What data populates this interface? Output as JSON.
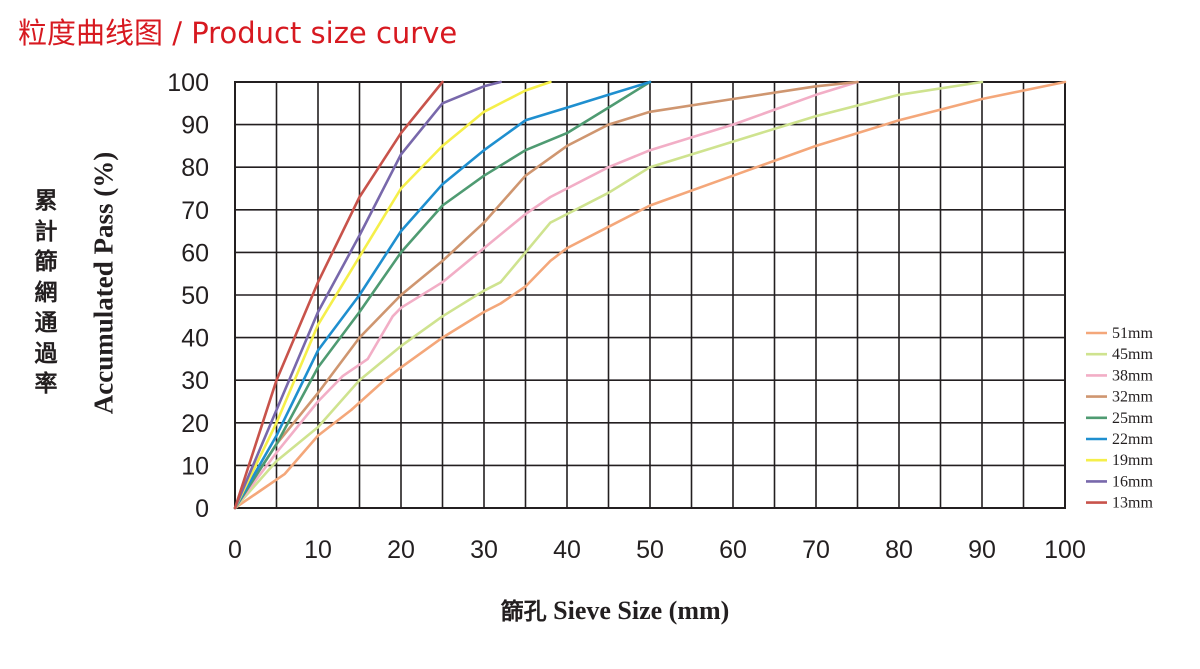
{
  "header": {
    "title": "粒度曲线图 / Product size curve"
  },
  "chart_data": {
    "type": "line",
    "title": "粒度曲线图 / Product size curve",
    "ylabel_cn": "累計篩網通過率",
    "ylabel": "Accumulated Pass (%)",
    "xlabel_cn": "篩孔",
    "xlabel": "Sieve Size (mm)",
    "xlim": [
      0,
      100
    ],
    "ylim": [
      0,
      100
    ],
    "xticks": [
      "0",
      "10",
      "20",
      "30",
      "40",
      "50",
      "60",
      "70",
      "80",
      "90",
      "100"
    ],
    "yticks": [
      "0",
      "10",
      "20",
      "30",
      "40",
      "50",
      "60",
      "70",
      "80",
      "90",
      "100"
    ],
    "grid": "on",
    "legend_position": "right",
    "series": [
      {
        "name": "51mm",
        "color": "#f4a77a",
        "x": [
          0,
          3,
          6,
          10,
          14,
          18,
          20,
          25,
          30,
          32,
          35,
          38,
          40,
          45,
          50,
          60,
          70,
          75,
          80,
          90,
          100
        ],
        "y": [
          0,
          4,
          8,
          17,
          23,
          30,
          33,
          40,
          46,
          48,
          52,
          58,
          61,
          66,
          71,
          78,
          85,
          88,
          91,
          96,
          100
        ]
      },
      {
        "name": "45mm",
        "color": "#cfe38f",
        "x": [
          0,
          5,
          10,
          15,
          20,
          25,
          30,
          32,
          35,
          38,
          40,
          45,
          50,
          60,
          70,
          80,
          90
        ],
        "y": [
          0,
          11,
          19,
          30,
          38,
          45,
          51,
          53,
          60,
          67,
          69,
          74,
          80,
          86,
          92,
          97,
          100
        ]
      },
      {
        "name": "38mm",
        "color": "#f2aec6",
        "x": [
          0,
          5,
          10,
          13,
          16,
          19,
          20,
          25,
          30,
          35,
          38,
          40,
          45,
          50,
          60,
          70,
          75
        ],
        "y": [
          0,
          13,
          25,
          31,
          35,
          45,
          47,
          53,
          61,
          69,
          73,
          75,
          80,
          84,
          90,
          97,
          100
        ]
      },
      {
        "name": "32mm",
        "color": "#cf9670",
        "x": [
          0,
          5,
          10,
          15,
          20,
          25,
          30,
          35,
          40,
          45,
          50,
          60,
          70,
          75
        ],
        "y": [
          0,
          15,
          27,
          40,
          50,
          58,
          67,
          78,
          85,
          90,
          93,
          96,
          99,
          100
        ]
      },
      {
        "name": "25mm",
        "color": "#4f9b72",
        "x": [
          0,
          5,
          10,
          15,
          20,
          25,
          30,
          35,
          40,
          45,
          50
        ],
        "y": [
          0,
          15,
          33,
          46,
          60,
          71,
          78,
          84,
          88,
          94,
          100
        ]
      },
      {
        "name": "22mm",
        "color": "#1f8fcf",
        "x": [
          0,
          5,
          10,
          15,
          20,
          25,
          30,
          35,
          40,
          45,
          50
        ],
        "y": [
          0,
          17,
          37,
          50,
          65,
          76,
          84,
          91,
          94,
          97,
          100
        ]
      },
      {
        "name": "19mm",
        "color": "#f5ef4a",
        "x": [
          0,
          5,
          10,
          15,
          20,
          25,
          30,
          35,
          38
        ],
        "y": [
          0,
          20,
          43,
          59,
          75,
          85,
          93,
          98,
          100
        ]
      },
      {
        "name": "16mm",
        "color": "#7868ab",
        "x": [
          0,
          5,
          10,
          15,
          20,
          25,
          30,
          32
        ],
        "y": [
          0,
          23,
          46,
          64,
          83,
          95,
          99,
          100
        ]
      },
      {
        "name": "13mm",
        "color": "#c8534b",
        "x": [
          0,
          5,
          10,
          15,
          20,
          25
        ],
        "y": [
          0,
          30,
          53,
          73,
          88,
          100
        ]
      }
    ]
  }
}
